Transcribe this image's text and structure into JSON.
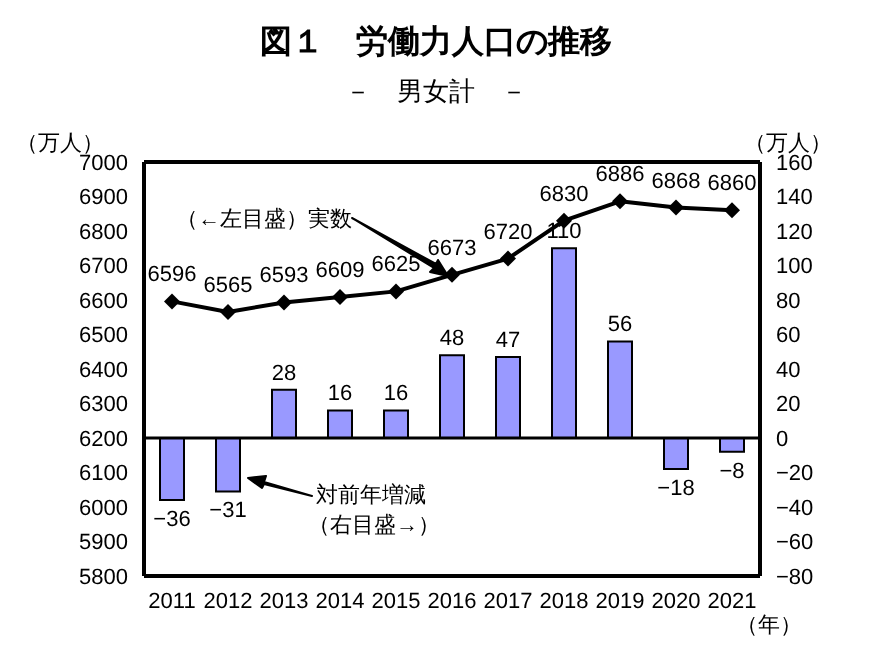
{
  "chart_data": {
    "type": "bar",
    "title": "図１　労働力人口の推移",
    "subtitle": "－　男女計　－",
    "ylabel": "（万人）",
    "y2label": "（万人）",
    "xlabel": "（年）",
    "categories": [
      "2011",
      "2012",
      "2013",
      "2014",
      "2015",
      "2016",
      "2017",
      "2018",
      "2019",
      "2020",
      "2021"
    ],
    "series": [
      {
        "axis": "y2",
        "color": "#9999ff",
        "values": [
          -36,
          -31,
          28,
          16,
          16,
          48,
          47,
          110,
          56,
          -18,
          -8
        ]
      },
      {
        "type": "line",
        "axis": "y",
        "color": "#000000",
        "marker": "diamond",
        "values": [
          6596,
          6565,
          6593,
          6609,
          6625,
          6673,
          6720,
          6830,
          6886,
          6868,
          6860
        ]
      }
    ],
    "ylim": [
      5800,
      7000
    ],
    "yticks": [
      5800,
      5900,
      6000,
      6100,
      6200,
      6300,
      6400,
      6500,
      6600,
      6700,
      6800,
      6900,
      7000
    ],
    "y2lim": [
      -80,
      160
    ],
    "y2ticks": [
      -80,
      -60,
      -40,
      -20,
      0,
      20,
      40,
      60,
      80,
      100,
      120,
      140,
      160
    ],
    "data_labels": true,
    "grid": false,
    "legend": false,
    "ref_lines": [
      {
        "axis": "y2",
        "value": 0,
        "color": "#000000"
      }
    ],
    "annotations": [
      "（←左目盛）実数",
      "対前年増減",
      "（右目盛→）"
    ]
  }
}
